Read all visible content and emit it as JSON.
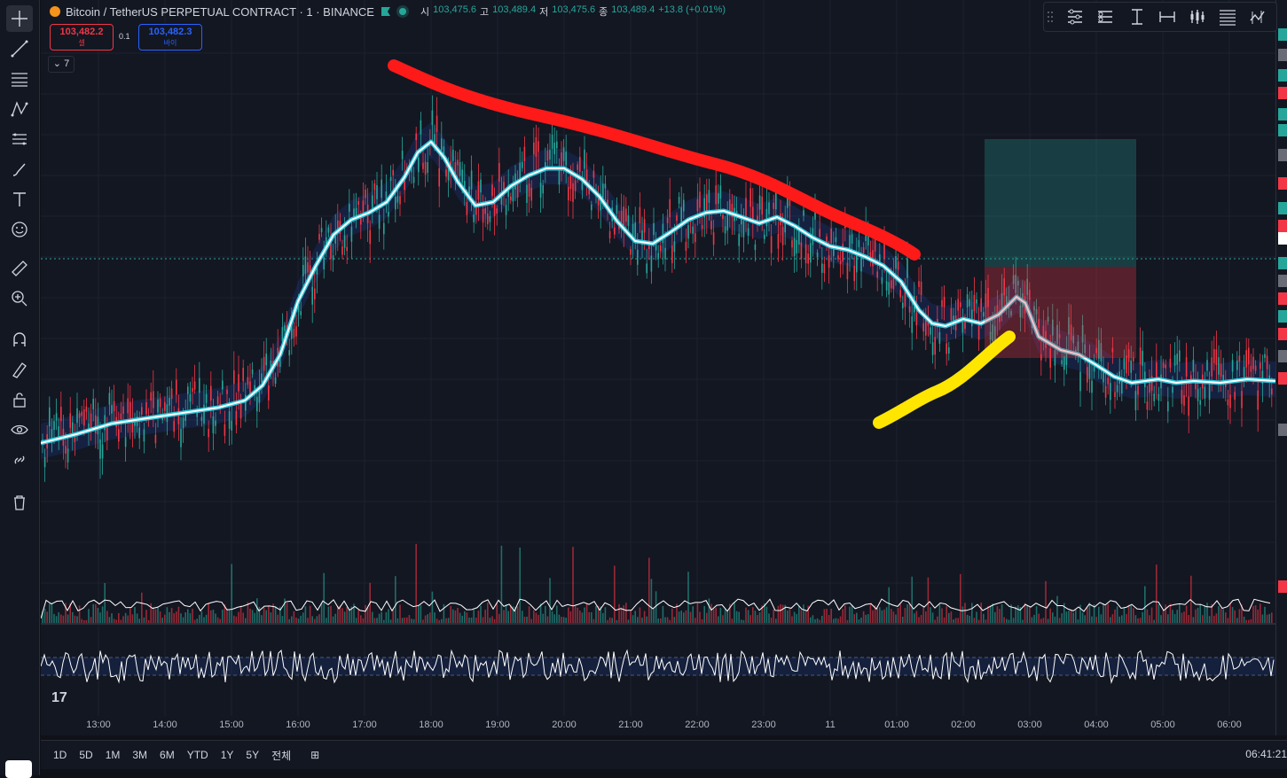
{
  "header": {
    "symbol_title": "Bitcoin / TetherUS PERPETUAL CONTRACT · 1 · BINANCE",
    "ohlc": {
      "open_label": "시",
      "open": "103,475.6",
      "high_label": "고",
      "high": "103,489.4",
      "low_label": "저",
      "low": "103,475.6",
      "close_label": "종",
      "close": "103,489.4",
      "change": "+13.8 (+0.01%)"
    }
  },
  "trade": {
    "sell_price": "103,482.2",
    "sell_label": "셀",
    "spread": "0.1",
    "buy_price": "103,482.3",
    "buy_label": "바이"
  },
  "legend_toggle": "7",
  "time_axis": [
    "13:00",
    "14:00",
    "15:00",
    "16:00",
    "17:00",
    "18:00",
    "19:00",
    "20:00",
    "21:00",
    "22:00",
    "23:00",
    "11",
    "01:00",
    "02:00",
    "03:00",
    "04:00",
    "05:00",
    "06:00"
  ],
  "ranges": [
    "1D",
    "5D",
    "1M",
    "3M",
    "6M",
    "YTD",
    "1Y",
    "5Y",
    "전체"
  ],
  "clock": "06:41:21",
  "colors": {
    "up": "#26a69a",
    "down": "#f23645",
    "ma": "#ffffff",
    "ma_glow": "#2ec4d6",
    "annot_red": "#ff1a1a",
    "annot_yellow": "#ffe600"
  },
  "icons": {
    "left_toolbar": [
      "crosshair-icon",
      "trend-line-icon",
      "fib-lines-icon",
      "pattern-icon",
      "forecast-icon",
      "brush-icon",
      "text-icon",
      "emoji-icon",
      "ruler-icon",
      "zoom-in-icon",
      "magnet-icon",
      "lock-drawing-icon",
      "lock-icon",
      "eye-icon",
      "link-icon",
      "trash-icon"
    ],
    "top_right": [
      "drag-handle-icon",
      "settings-lines-icon",
      "list-icon",
      "vertical-bar-icon",
      "horizontal-bar-icon",
      "candles-icon",
      "menu-lines-icon",
      "indicator-icon"
    ]
  }
}
